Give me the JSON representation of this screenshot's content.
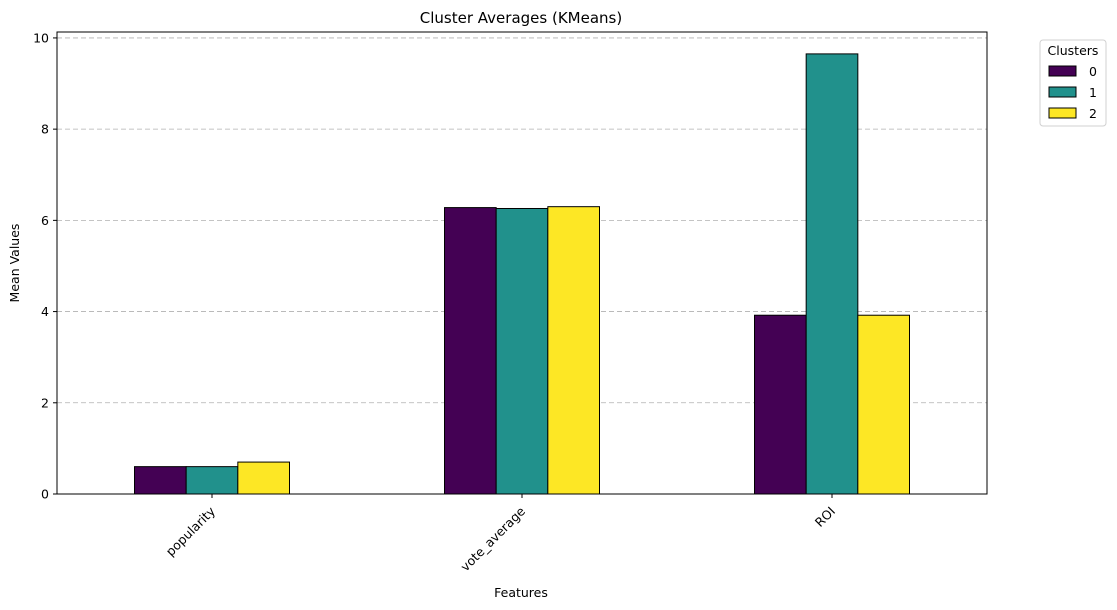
{
  "chart_data": {
    "type": "bar",
    "title": "Cluster Averages (KMeans)",
    "xlabel": "Features",
    "ylabel": "Mean Values",
    "categories": [
      "popularity",
      "vote_average",
      "ROI"
    ],
    "series": [
      {
        "name": "0",
        "color": "#440154",
        "values": [
          0.6,
          6.28,
          3.92
        ]
      },
      {
        "name": "1",
        "color": "#21918c",
        "values": [
          0.6,
          6.26,
          9.65
        ]
      },
      {
        "name": "2",
        "color": "#fde725",
        "values": [
          0.7,
          6.3,
          3.92
        ]
      }
    ],
    "ylim": [
      0,
      10.13
    ],
    "yticks": [
      "0",
      "2",
      "4",
      "6",
      "8",
      "10"
    ],
    "grid": "y-dashed",
    "legend": {
      "title": "Clusters",
      "placement": "outside-top-right"
    }
  }
}
